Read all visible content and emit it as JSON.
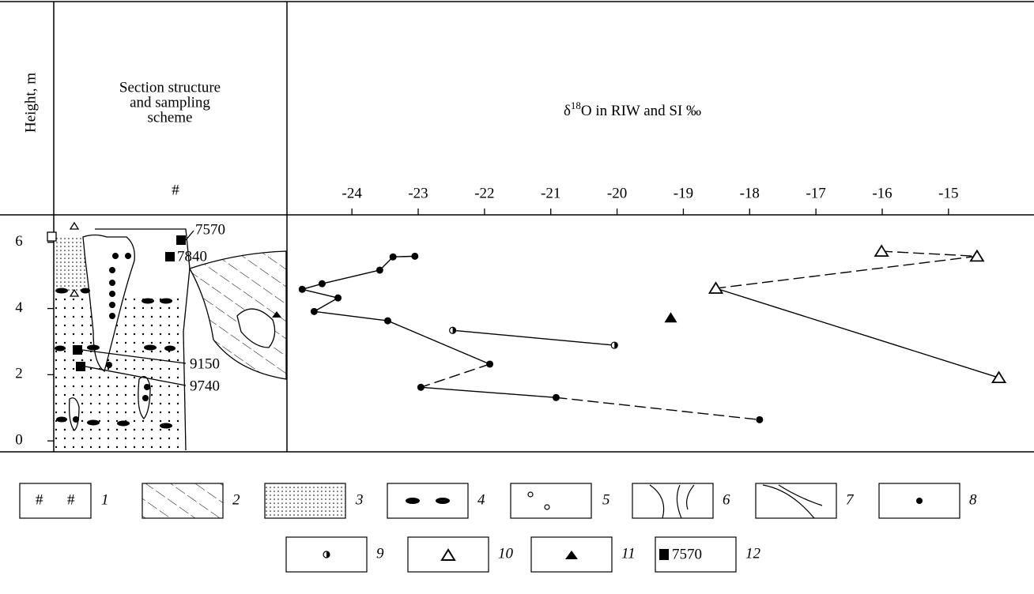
{
  "header": {
    "height_label": "Height, m",
    "section_label": [
      "Section structure",
      "and sampling",
      "scheme"
    ]
  },
  "section": {
    "samples": [
      "7570",
      "7840",
      "9150",
      "9740"
    ]
  },
  "chart_data": {
    "type": "line",
    "title": {
      "symbol": "δ",
      "superscript": "18",
      "text": "O in RIW and SI ‰"
    },
    "xlim": [
      -24.98,
      -13.71
    ],
    "xticks": [
      -24,
      -23,
      -22,
      -21,
      -20,
      -19,
      -18,
      -17,
      -16,
      -15
    ],
    "ylim": [
      -0.33,
      6.83
    ],
    "yticks": [
      0,
      2,
      4,
      6
    ],
    "series": [
      {
        "marker": "circle",
        "color": "#000000",
        "x": [
          -23.05,
          -23.38,
          -23.58,
          -24.45,
          -24.75,
          -24.21,
          -24.57,
          -23.46,
          -21.92,
          -22.96,
          -20.92,
          -17.85
        ],
        "values": [
          5.58,
          5.56,
          5.16,
          4.75,
          4.58,
          4.32,
          3.91,
          3.63,
          2.32,
          1.62,
          1.31,
          0.64
        ],
        "segments": [
          "solid",
          "solid",
          "solid",
          "solid",
          "solid",
          "solid",
          "solid",
          "solid",
          "dashed",
          "solid",
          "dashed"
        ]
      },
      {
        "marker": "half-circle",
        "color": "#000000",
        "x": [
          -22.48,
          -20.04
        ],
        "values": [
          3.34,
          2.89
        ],
        "segments": [
          "solid"
        ]
      },
      {
        "marker": "open-triangle",
        "color": "#000000",
        "x": [
          -16.01,
          -14.57,
          -18.51,
          -14.24
        ],
        "values": [
          5.73,
          5.58,
          4.61,
          1.91
        ],
        "segments": [
          "dashed",
          "dashed",
          "solid"
        ]
      },
      {
        "marker": "triangle",
        "color": "#000000",
        "x": [
          -19.19
        ],
        "values": [
          3.72
        ],
        "segments": []
      }
    ]
  },
  "legend": {
    "items": [
      "1",
      "2",
      "3",
      "4",
      "5",
      "6",
      "7",
      "8",
      "9",
      "10",
      "11",
      "12"
    ],
    "sample": "7570"
  }
}
